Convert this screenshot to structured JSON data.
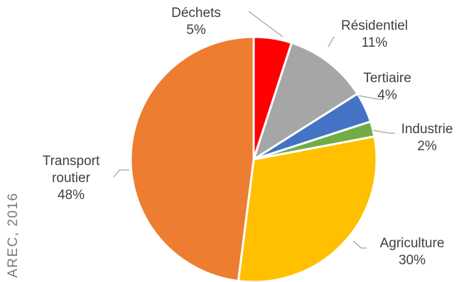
{
  "source_note": "AREC, 2016",
  "chart_data": {
    "type": "pie",
    "title": "",
    "start_angle_deg": 0,
    "direction": "clockwise",
    "slices": [
      {
        "label": "Déchets",
        "value": 5,
        "display": "5%",
        "color": "#ff0000"
      },
      {
        "label": "Résidentiel",
        "value": 11,
        "display": "11%",
        "color": "#a6a6a6"
      },
      {
        "label": "Tertiaire",
        "value": 4,
        "display": "4%",
        "color": "#4472c4"
      },
      {
        "label": "Industrie",
        "value": 2,
        "display": "2%",
        "color": "#70ad47"
      },
      {
        "label": "Agriculture",
        "value": 30,
        "display": "30%",
        "color": "#ffc000"
      },
      {
        "label": "Transport routier",
        "label_lines": [
          "Transport",
          "routier"
        ],
        "value": 48,
        "display": "48%",
        "color": "#ed7d31"
      }
    ],
    "legend": "none",
    "data_labels": "outside with leader lines"
  }
}
